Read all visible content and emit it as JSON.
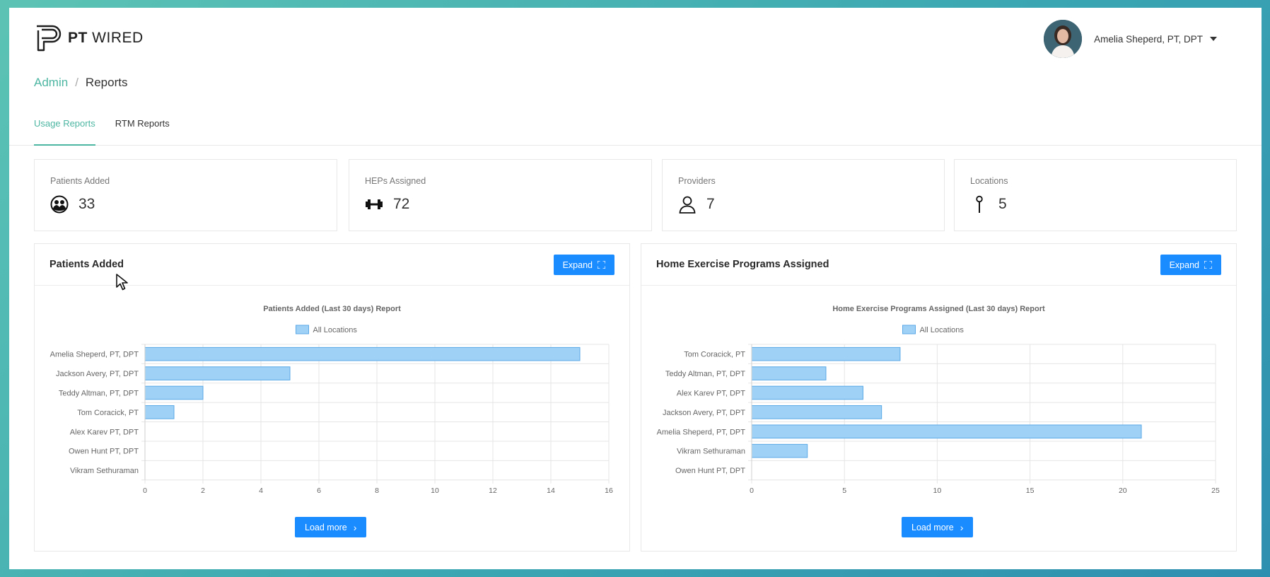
{
  "brand": {
    "bold": "PT",
    "light": " WIRED"
  },
  "user": {
    "name": "Amelia Sheperd, PT, DPT"
  },
  "breadcrumb": {
    "root": "Admin",
    "separator": "/",
    "current": "Reports"
  },
  "tabs": [
    {
      "label": "Usage Reports",
      "active": true
    },
    {
      "label": "RTM Reports",
      "active": false
    }
  ],
  "stats": [
    {
      "label": "Patients Added",
      "value": "33",
      "icon": "patients-icon"
    },
    {
      "label": "HEPs Assigned",
      "value": "72",
      "icon": "dumbbell-icon"
    },
    {
      "label": "Providers",
      "value": "7",
      "icon": "person-icon"
    },
    {
      "label": "Locations",
      "value": "5",
      "icon": "pin-icon"
    }
  ],
  "colors": {
    "accent": "#4db6a2",
    "button": "#1a8cff",
    "bar_fill": "#9fd0f5",
    "bar_stroke": "#5aa9e6"
  },
  "panels": [
    {
      "title": "Patients Added",
      "expand_label": "Expand",
      "load_more_label": "Load more",
      "chart_data": {
        "type": "bar",
        "orientation": "horizontal",
        "title": "Patients Added (Last 30 days) Report",
        "categories": [
          "Amelia Sheperd, PT, DPT",
          "Jackson Avery, PT, DPT",
          "Teddy Altman, PT, DPT",
          "Tom Coracick, PT",
          "Alex Karev PT, DPT",
          "Owen Hunt PT, DPT",
          "Vikram Sethuraman"
        ],
        "series": [
          {
            "name": "All Locations",
            "values": [
              15,
              5,
              2,
              1,
              0,
              0,
              0
            ]
          }
        ],
        "xlim": [
          0,
          16
        ],
        "xticks": [
          0,
          2,
          4,
          6,
          8,
          10,
          12,
          14,
          16
        ],
        "grid": true,
        "legend": "top"
      }
    },
    {
      "title": "Home Exercise Programs Assigned",
      "expand_label": "Expand",
      "load_more_label": "Load more",
      "chart_data": {
        "type": "bar",
        "orientation": "horizontal",
        "title": "Home Exercise Programs Assigned (Last 30 days) Report",
        "categories": [
          "Tom Coracick, PT",
          "Teddy Altman, PT, DPT",
          "Alex Karev PT, DPT",
          "Jackson Avery, PT, DPT",
          "Amelia Sheperd, PT, DPT",
          "Vikram Sethuraman",
          "Owen Hunt PT, DPT"
        ],
        "series": [
          {
            "name": "All Locations",
            "values": [
              8,
              4,
              6,
              7,
              21,
              3,
              0
            ]
          }
        ],
        "xlim": [
          0,
          25
        ],
        "xticks": [
          0,
          5,
          10,
          15,
          20,
          25
        ],
        "grid": true,
        "legend": "top"
      }
    }
  ]
}
